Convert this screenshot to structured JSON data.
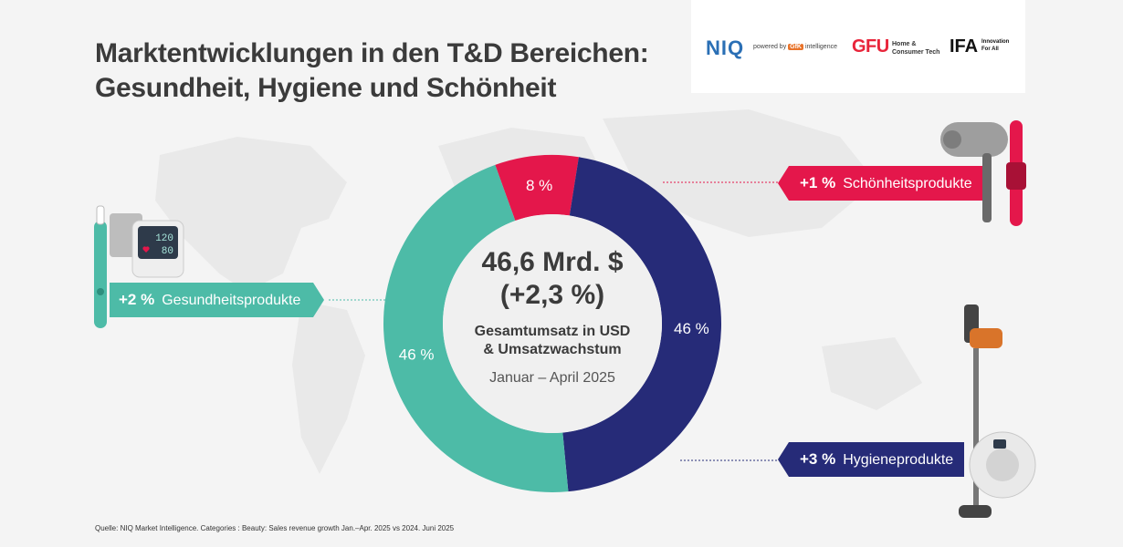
{
  "title_line1": "Marktentwicklungen in den T&D Bereichen:",
  "title_line2": "Gesundheit, Hygiene und Schönheit",
  "logos": {
    "niq": "NIQ",
    "powered": "powered by",
    "gfk": "GfK",
    "intelligence": "intelligence",
    "gfu": "GFU",
    "gfu_sub1": "Home &",
    "gfu_sub2": "Consumer Tech",
    "ifa": "IFA",
    "ifa_sub1": "Innovation",
    "ifa_sub2": "For All"
  },
  "center": {
    "total": "46,6 Mrd. $",
    "growth": "(+2,3 %)",
    "desc_line1": "Gesamtumsatz in USD",
    "desc_line2": "& Umsatzwachstum",
    "period": "Januar – April 2025"
  },
  "tags": {
    "health_pct": "+2 %",
    "health_label": "Gesundheitsprodukte",
    "beauty_pct": "+1 %",
    "beauty_label": "Schönheitsprodukte",
    "hyg_pct": "+3 %",
    "hyg_label": "Hygieneprodukte"
  },
  "device": {
    "bp_sys": "120",
    "bp_dia": "80"
  },
  "source": "Quelle: NIQ Market Intelligence. Categories : Beauty: Sales revenue growth Jan.–Apr. 2025 vs 2024. Juni 2025",
  "colors": {
    "health": "#4dbba7",
    "beauty": "#e4174b",
    "hygiene": "#262b78",
    "bg": "#f4f4f4"
  },
  "chart_data": {
    "type": "pie",
    "categories": [
      "Schönheitsprodukte",
      "Hygieneprodukte",
      "Gesundheitsprodukte"
    ],
    "values": [
      8,
      46,
      46
    ],
    "labels": [
      "8 %",
      "46 %",
      "46 %"
    ],
    "colors": [
      "#e4174b",
      "#262b78",
      "#4dbba7"
    ]
  }
}
